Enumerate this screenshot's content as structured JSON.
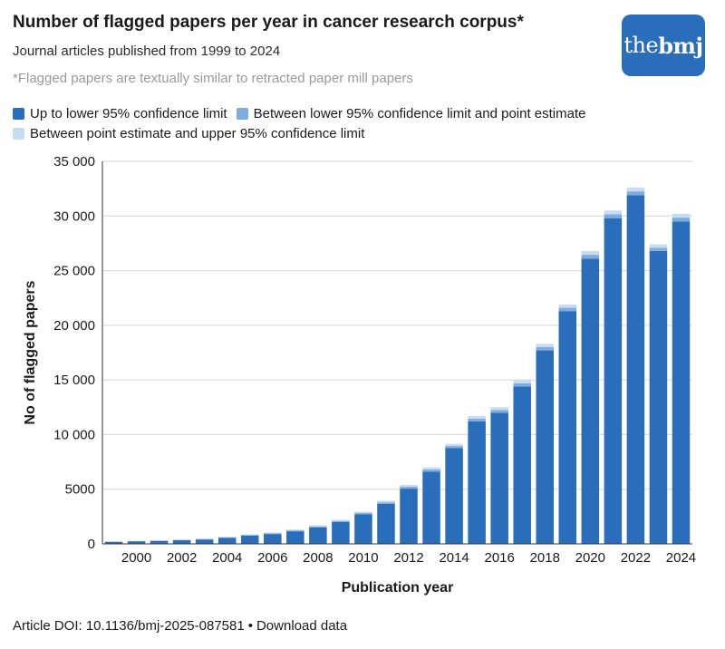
{
  "header": {
    "title": "Number of flagged papers per year in cancer research corpus*",
    "subtitle": "Journal articles published from 1999 to 2024",
    "footnote": "*Flagged papers are textually similar to retracted paper mill papers",
    "logo_the": "the",
    "logo_bmj": "bmj"
  },
  "footer": {
    "doi": "Article DOI: 10.1136/bmj-2025-087581",
    "download": "Download data"
  },
  "colors": {
    "lower": "#2a6ebb",
    "mid": "#7fabdf",
    "upper": "#c9dbf1",
    "grid": "#d6d6d6",
    "axis": "#333333"
  },
  "chart_data": {
    "type": "bar",
    "stacked": true,
    "categories": [
      "1999",
      "2000",
      "2001",
      "2002",
      "2003",
      "2004",
      "2005",
      "2006",
      "2007",
      "2008",
      "2009",
      "2010",
      "2011",
      "2012",
      "2013",
      "2014",
      "2015",
      "2016",
      "2017",
      "2018",
      "2019",
      "2020",
      "2021",
      "2022",
      "2023",
      "2024"
    ],
    "tick_labels": [
      "2000",
      "2002",
      "2004",
      "2006",
      "2008",
      "2010",
      "2012",
      "2014",
      "2016",
      "2018",
      "2020",
      "2022",
      "2024"
    ],
    "series": [
      {
        "name": "Up to lower 95% confidence limit",
        "values": [
          180,
          230,
          270,
          330,
          400,
          550,
          750,
          900,
          1150,
          1500,
          2000,
          2700,
          3650,
          5050,
          6600,
          8750,
          11200,
          12000,
          14400,
          17700,
          21300,
          26100,
          29800,
          31900,
          26800,
          29500
        ]
      },
      {
        "name": "Between lower 95% confidence limit and point estimate",
        "values": [
          20,
          20,
          25,
          30,
          40,
          50,
          60,
          70,
          80,
          100,
          100,
          120,
          150,
          170,
          200,
          200,
          250,
          250,
          280,
          300,
          300,
          350,
          350,
          350,
          300,
          350
        ]
      },
      {
        "name": "Between point estimate and upper 95% confidence limit",
        "values": [
          20,
          20,
          25,
          30,
          40,
          50,
          60,
          70,
          80,
          100,
          100,
          120,
          150,
          170,
          200,
          200,
          250,
          250,
          280,
          300,
          300,
          350,
          350,
          350,
          300,
          350
        ]
      }
    ],
    "ylim": [
      0,
      35000
    ],
    "yticks": [
      0,
      5000,
      10000,
      15000,
      20000,
      25000,
      30000,
      35000
    ],
    "ytick_labels": [
      "0",
      "5000",
      "10 000",
      "15 000",
      "20 000",
      "25 000",
      "30 000",
      "35 000"
    ],
    "xlabel": "Publication year",
    "ylabel": "No of flagged papers",
    "grid": true,
    "legend_position": "top"
  }
}
